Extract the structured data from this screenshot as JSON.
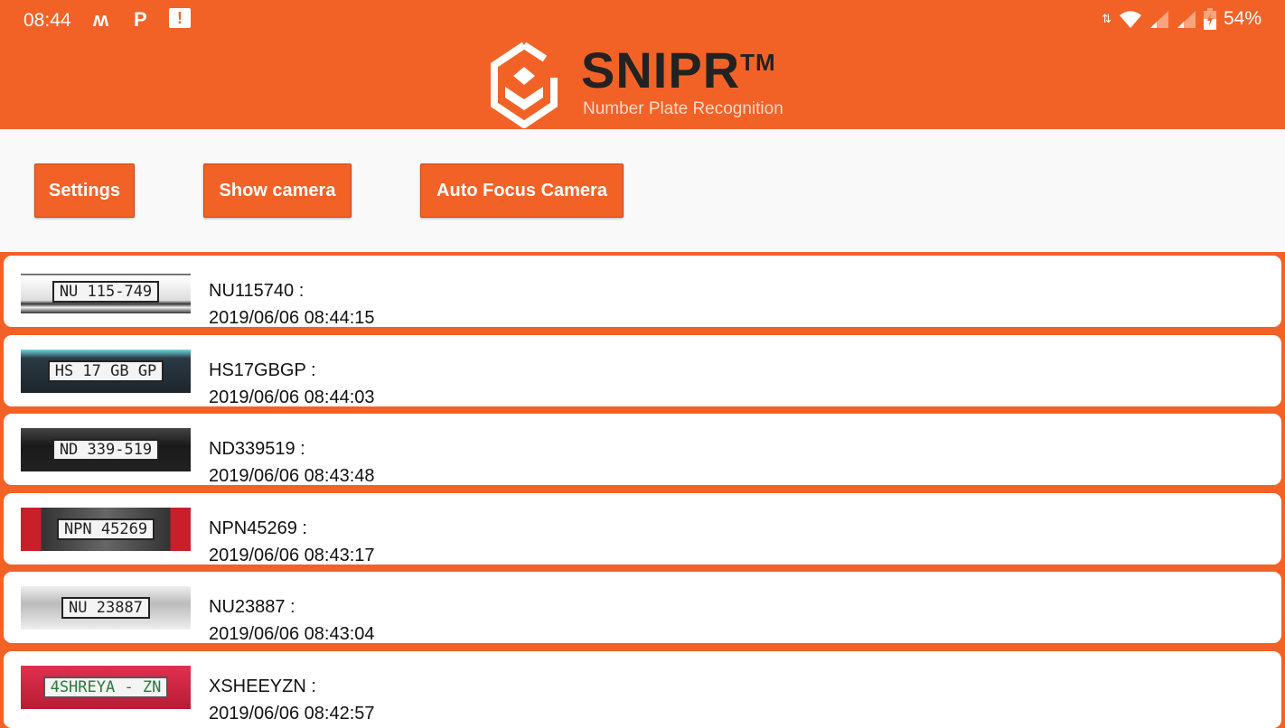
{
  "status_bar": {
    "time": "08:44",
    "left_icons": [
      "m-notification-icon",
      "p-notification-icon",
      "alert-message-icon"
    ],
    "battery": "54%",
    "right_icons": [
      "data-arrows-icon",
      "wifi-icon",
      "signal-icon",
      "signal-icon",
      "battery-charging-icon"
    ]
  },
  "header": {
    "brand": "SNIPR",
    "trademark": "TM",
    "tagline": "Number Plate Recognition"
  },
  "toolbar": {
    "settings": "Settings",
    "show_camera": "Show camera",
    "auto_focus": "Auto Focus Camera"
  },
  "colors": {
    "accent": "#f26227"
  },
  "results": [
    {
      "plate_image_text": "NU 115-749",
      "plate": "NU115740 :",
      "time": "2019/06/06 08:44:15"
    },
    {
      "plate_image_text": "HS 17 GB GP",
      "plate": "HS17GBGP :",
      "time": "2019/06/06 08:44:03"
    },
    {
      "plate_image_text": "ND 339-519",
      "plate": "ND339519 :",
      "time": "2019/06/06 08:43:48"
    },
    {
      "plate_image_text": "NPN 45269",
      "plate": "NPN45269 :",
      "time": "2019/06/06 08:43:17"
    },
    {
      "plate_image_text": "NU 23887",
      "plate": "NU23887 :",
      "time": "2019/06/06 08:43:04"
    },
    {
      "plate_image_text": "4SHREYA - ZN",
      "plate": "XSHEEYZN :",
      "time": "2019/06/06 08:42:57"
    }
  ]
}
